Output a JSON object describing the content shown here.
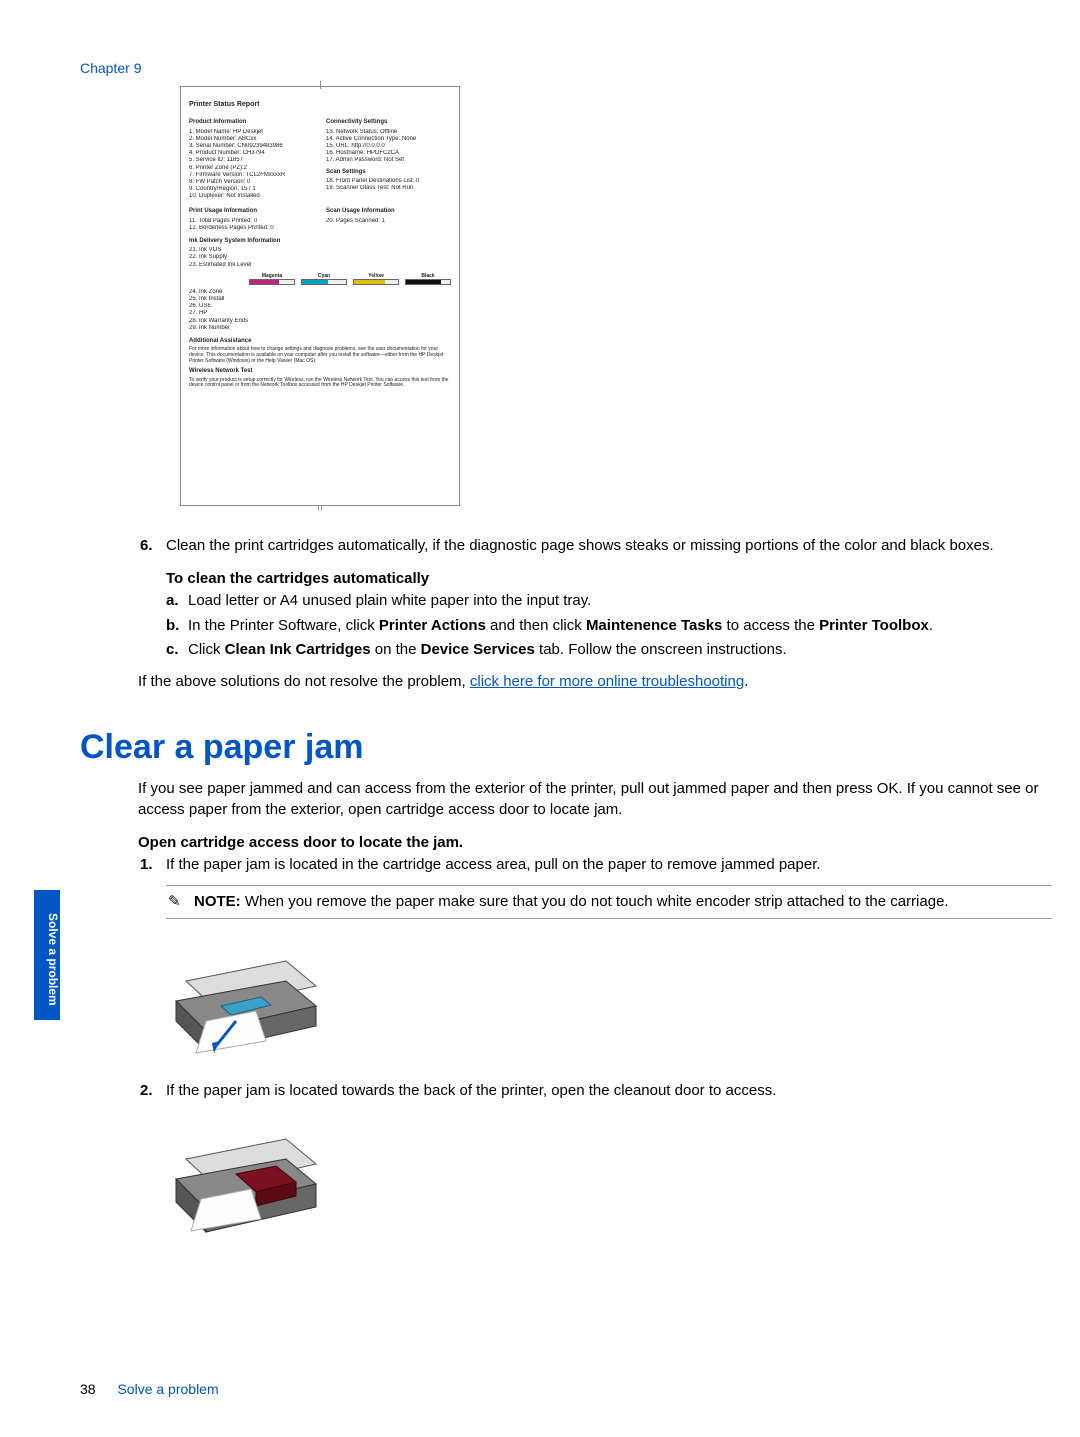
{
  "header": {
    "chapter": "Chapter 9"
  },
  "report": {
    "title": "Printer Status Report",
    "product_info_title": "Product Information",
    "product_info": [
      "1. Model Name: HP Deskjet",
      "2. Model Number: ABCxx",
      "3. Serial Number: CN09239483986",
      "4. Product Number: CH3794",
      "5. Service ID: 11857",
      "6. Printer Zone (PZ):2",
      "7. Firmware Version: TCL2FMxxxxR",
      "8. FW Patch Version: 0",
      "9. Country/Region: 15 / 1",
      "10. Duplexer: Not Installed"
    ],
    "conn_title": "Connectivity Settings",
    "conn": [
      "13. Network Status: Offline",
      "14. Active Connection Type: None",
      "15. URL: http://0.0.0.0",
      "16. Hostname: HPDFC2CA",
      "17. Admin Password: Not Set"
    ],
    "scan_settings_title": "Scan Settings",
    "scan_settings": [
      "18. Front Panel Destinations List: 0",
      "19. Scanner Glass Test: Not Run"
    ],
    "print_usage_title": "Print Usage Information",
    "print_usage": [
      "11. Total Pages Printed: 0",
      "12. Borderless Pages Printed: 0"
    ],
    "scan_usage_title": "Scan Usage Information",
    "scan_usage": [
      "20. Pages Scanned: 1"
    ],
    "ink_title": "Ink Delivery System Information",
    "ink_rows": [
      "21. Ink VOS",
      "22. Ink Supply",
      "23. Estimated Ink Level"
    ],
    "ink_headers": [
      "Magenta",
      "Cyan",
      "Yellow",
      "Black"
    ],
    "ink_colors": [
      "#c02080",
      "#00a0c0",
      "#e0c000",
      "#101010"
    ],
    "ink_fill_pct": [
      65,
      60,
      70,
      80
    ],
    "ink_rows2": [
      "24. Ink Zone",
      "25. Ink Install",
      "26. USE",
      "27. HP",
      "28. Ink Warranty Ends",
      "29. Ink Number"
    ],
    "assist_title": "Additional Assistance",
    "assist_text": "For more information about how to change settings and diagnose problems, see the user documentation for your device. This documentation is available on your computer after you install the software—either from the HP Deskjet Printer Software (Windows) or the Help Viewer (Mac OS).",
    "wireless_title": "Wireless Network Test",
    "wireless_text": "To verify your product is setup correctly for Wireless, run the Wireless Network Test. You can access this test from the device control panel or from the Network Toolbox accessed from the HP Deskjet Printer Software."
  },
  "step6": {
    "num": "6.",
    "text": "Clean the print cartridges automatically, if the diagnostic page shows steaks or missing portions of the color and black boxes."
  },
  "clean_head": "To clean the cartridges automatically",
  "clean_steps": {
    "a": {
      "lett": "a.",
      "text": "Load letter or A4 unused plain white paper into the input tray."
    },
    "b": {
      "lett": "b.",
      "prefix": "In the Printer Software, click ",
      "b1": "Printer Actions",
      "mid": " and then click ",
      "b2": "Maintenence Tasks",
      "mid2": " to access the ",
      "b3": "Printer Toolbox",
      "suffix": "."
    },
    "c": {
      "lett": "c.",
      "prefix": "Click ",
      "b1": "Clean Ink Cartridges",
      "mid": " on the ",
      "b2": "Device Services",
      "suffix": " tab. Follow the onscreen instructions."
    }
  },
  "para1": {
    "prefix": "If the above solutions do not resolve the problem, ",
    "link": "click here for more online troubleshooting",
    "suffix": "."
  },
  "h1": "Clear a paper jam",
  "para2": "If you see paper jammed and can access from the exterior of the printer, pull out jammed paper and then press OK. If you cannot see or access paper from the exterior, open cartridge access door to locate jam.",
  "open_head": "Open cartridge access door to locate the jam.",
  "step1": {
    "num": "1.",
    "text": "If the paper jam is located in the cartridge access area, pull on the paper to remove jammed paper."
  },
  "note": {
    "icon": "✎",
    "label": "NOTE:",
    "text": " When you remove the paper make sure that you do not touch white encoder strip attached to the carriage."
  },
  "step2": {
    "num": "2.",
    "text": "If the paper jam is located towards the back of the printer, open the cleanout door to access."
  },
  "sidetab": "Solve a problem",
  "footer": {
    "page": "38",
    "title": "Solve a problem"
  },
  "colors": {
    "accent": "#0055c4"
  }
}
